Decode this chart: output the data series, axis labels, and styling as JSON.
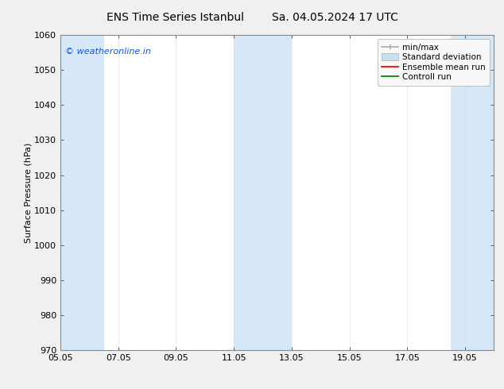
{
  "title_left": "ENS Time Series Istanbul",
  "title_right": "Sa. 04.05.2024 17 UTC",
  "ylabel": "Surface Pressure (hPa)",
  "ylim": [
    970,
    1060
  ],
  "yticks": [
    970,
    980,
    990,
    1000,
    1010,
    1020,
    1030,
    1040,
    1050,
    1060
  ],
  "xtick_vals": [
    5.0,
    7.0,
    9.0,
    11.0,
    13.0,
    15.0,
    17.0,
    19.0
  ],
  "xtick_labels": [
    "05.05",
    "07.05",
    "09.05",
    "11.05",
    "13.05",
    "15.05",
    "17.05",
    "19.05"
  ],
  "xlim": [
    5.0,
    20.0
  ],
  "bg_color": "#f0f0f0",
  "plot_bg_color": "#ffffff",
  "shaded_bands": [
    {
      "x_start": 5.0,
      "x_end": 6.5,
      "color": "#d6e8f7"
    },
    {
      "x_start": 11.0,
      "x_end": 13.0,
      "color": "#d6e8f7"
    },
    {
      "x_start": 18.5,
      "x_end": 20.1,
      "color": "#d6e8f7"
    }
  ],
  "watermark_text": "© weatheronline.in",
  "watermark_color": "#1155cc",
  "legend_labels": [
    "min/max",
    "Standard deviation",
    "Ensemble mean run",
    "Controll run"
  ],
  "legend_minmax_color": "#aaaaaa",
  "legend_std_color": "#c8dff0",
  "legend_ens_color": "#ff0000",
  "legend_ctrl_color": "#008800",
  "spine_color": "#888888",
  "tick_color": "#444444",
  "title_fontsize": 10,
  "label_fontsize": 8,
  "tick_fontsize": 8,
  "watermark_fontsize": 8,
  "legend_fontsize": 7.5
}
